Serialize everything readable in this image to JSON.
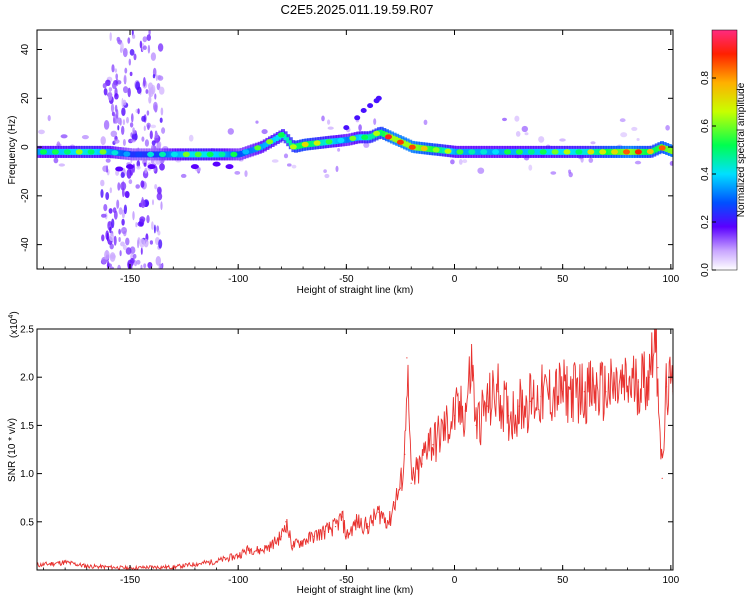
{
  "title": "C2E5.2025.011.19.59.R07",
  "chart_data": [
    {
      "type": "heatmap",
      "xlabel": "Height of straight line (km)",
      "ylabel": "Frequency (Hz)",
      "xlim": [
        -193,
        101
      ],
      "ylim": [
        -50,
        48
      ],
      "x_ticks": [
        "-150",
        "-100",
        "-50",
        "0",
        "50",
        "100"
      ],
      "y_ticks": [
        "-40",
        "-20",
        "0",
        "20",
        "40"
      ],
      "colorbar": {
        "label": "Normalized spectral amplitude",
        "range": [
          0,
          1
        ],
        "ticks": [
          "0.0",
          "0.2",
          "0.4",
          "0.6",
          "0.8"
        ]
      },
      "ridge": {
        "x": [
          -193,
          -170,
          -160,
          -150,
          -140,
          -130,
          -120,
          -110,
          -100,
          -90,
          -80,
          -75,
          -70,
          -60,
          -50,
          -45,
          -40,
          -35,
          -30,
          -20,
          -10,
          0,
          20,
          40,
          60,
          80,
          90,
          95,
          101
        ],
        "frequency": [
          -2,
          -2,
          -2,
          -3,
          -3,
          -3,
          -3,
          -3,
          -3,
          0,
          5,
          0,
          1,
          2,
          3,
          4,
          4,
          6,
          4,
          0,
          -1,
          -2,
          -2,
          -2,
          -2,
          -2,
          -2,
          0,
          -2
        ],
        "amplitude": [
          0.5,
          0.6,
          0.5,
          0.35,
          0.35,
          0.5,
          0.6,
          0.55,
          0.4,
          0.5,
          0.6,
          0.7,
          0.75,
          0.6,
          0.45,
          0.55,
          0.65,
          0.7,
          0.9,
          0.9,
          0.75,
          0.5,
          0.5,
          0.55,
          0.6,
          0.9,
          0.7,
          0.8,
          0.9
        ]
      }
    },
    {
      "type": "line",
      "xlabel": "Height of straight line (km)",
      "ylabel": "SNR (10 * v/v)",
      "y_scale_label": "(x10",
      "y_scale_exp": "4",
      "xlim": [
        -193,
        101
      ],
      "ylim": [
        0,
        25000
      ],
      "x_ticks": [
        "-150",
        "-100",
        "-50",
        "0",
        "50",
        "100"
      ],
      "y_ticks": [
        "0.5",
        "1.0",
        "1.5",
        "2.0",
        "2.5"
      ],
      "color": "#e8312e",
      "series": [
        {
          "x": [
            -193,
            -180,
            -170,
            -160,
            -150,
            -140,
            -130,
            -120,
            -110,
            -100,
            -95,
            -90,
            -85,
            -80,
            -78,
            -75,
            -70,
            -65,
            -60,
            -55,
            -52,
            -50,
            -45,
            -40,
            -35,
            -30,
            -28,
            -25,
            -23,
            -22,
            -20,
            -15,
            -12,
            -10,
            -5,
            0,
            5,
            8,
            10,
            15,
            20,
            25,
            30,
            35,
            40,
            50,
            60,
            70,
            80,
            85,
            90,
            92,
            94,
            96,
            98,
            101
          ],
          "y": [
            500,
            800,
            400,
            300,
            200,
            300,
            300,
            600,
            900,
            1500,
            2200,
            2000,
            2500,
            3500,
            5000,
            2500,
            3000,
            3500,
            4000,
            4500,
            5500,
            3500,
            5000,
            4500,
            6000,
            5000,
            7000,
            8500,
            12000,
            22000,
            9000,
            11000,
            14000,
            13000,
            14500,
            16000,
            16500,
            21500,
            15000,
            17000,
            18500,
            16000,
            17000,
            17500,
            18000,
            18500,
            18500,
            18500,
            19000,
            19500,
            20000,
            25000,
            21000,
            9500,
            19000,
            18500
          ]
        }
      ]
    }
  ]
}
